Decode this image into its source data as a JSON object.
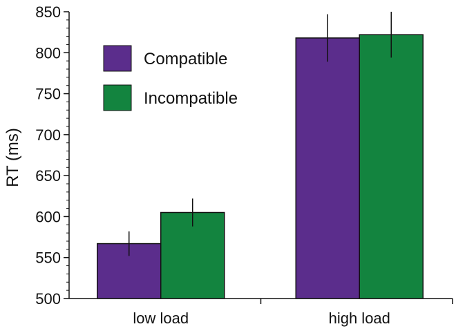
{
  "chart_data": {
    "type": "bar",
    "title": "",
    "xlabel": "",
    "ylabel": "RT (ms)",
    "ylim": [
      500,
      850
    ],
    "yticks": [
      500,
      550,
      600,
      650,
      700,
      750,
      800,
      850
    ],
    "grid": false,
    "legend_position": "top-left",
    "categories": [
      "low load",
      "high load"
    ],
    "series": [
      {
        "name": "Compatible",
        "color": "#5b2d8c",
        "values": [
          567,
          818
        ],
        "errors": [
          15,
          29
        ]
      },
      {
        "name": "Incompatible",
        "color": "#13843f",
        "values": [
          605,
          822
        ],
        "errors": [
          17,
          28
        ]
      }
    ]
  }
}
